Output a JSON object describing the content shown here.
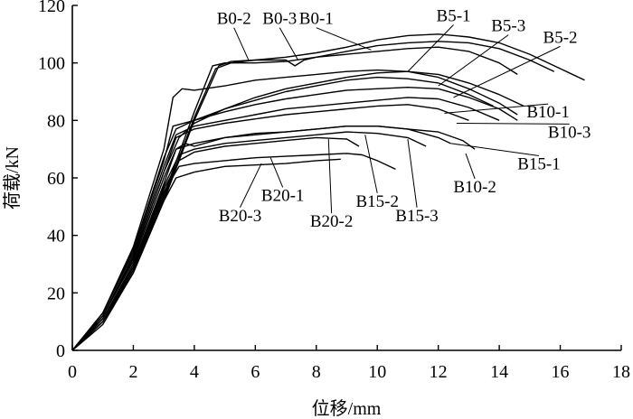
{
  "chart_data": {
    "type": "line",
    "xlabel": "位移/mm",
    "ylabel": "荷载/kN",
    "xlim": [
      0,
      18
    ],
    "ylim": [
      0,
      120
    ],
    "xticks": [
      0,
      2,
      4,
      6,
      8,
      10,
      12,
      14,
      16,
      18
    ],
    "yticks": [
      0,
      20,
      40,
      60,
      80,
      100,
      120
    ],
    "grid": false,
    "series": [
      {
        "name": "B0-1",
        "x": [
          0,
          1,
          2,
          3,
          4,
          4.8,
          5.2,
          6,
          7,
          8,
          9,
          10,
          11,
          12,
          13,
          14,
          15,
          16,
          16.8
        ],
        "y": [
          0,
          10,
          27,
          52,
          80,
          99,
          100.5,
          101,
          102,
          103.5,
          105.5,
          108,
          109.5,
          110,
          109,
          107,
          103,
          98,
          94
        ],
        "label_x": 8.0,
        "label_y": 113.5,
        "anchor_x": 9.8,
        "anchor_y": 104.5
      },
      {
        "name": "B0-2",
        "x": [
          0,
          1,
          2,
          3,
          4,
          4.6,
          5,
          6,
          7,
          8,
          9,
          10,
          11,
          12,
          13,
          14,
          14.6
        ],
        "y": [
          0,
          10,
          28,
          54,
          83,
          99,
          100,
          100,
          100.5,
          102,
          103,
          104,
          105,
          105.5,
          104,
          100,
          96
        ],
        "label_x": 5.3,
        "label_y": 113.5,
        "anchor_x": 5.8,
        "anchor_y": 100.5
      },
      {
        "name": "B0-3",
        "x": [
          0,
          1,
          2,
          3,
          4,
          4.7,
          5.2,
          6,
          7,
          7.3,
          7.6,
          8,
          9,
          10,
          11,
          12,
          13,
          14,
          15,
          15.8
        ],
        "y": [
          0,
          9,
          27,
          53,
          81,
          98,
          100,
          101,
          101,
          99,
          101,
          102,
          104,
          106,
          107,
          107.5,
          107,
          105,
          101,
          97
        ],
        "label_x": 6.8,
        "label_y": 113.5,
        "anchor_x": 7.4,
        "anchor_y": 101
      },
      {
        "name": "B5-1",
        "x": [
          0,
          1,
          2,
          3,
          3.5,
          4,
          5,
          6,
          7,
          8,
          9,
          10,
          11,
          12,
          13,
          14,
          14.8
        ],
        "y": [
          0,
          12,
          32,
          62,
          74,
          79,
          84,
          88,
          91,
          93,
          95,
          96.5,
          97,
          96,
          93,
          89,
          85
        ],
        "label_x": 12.5,
        "label_y": 114.5,
        "anchor_x": 11.0,
        "anchor_y": 97
      },
      {
        "name": "B5-2",
        "x": [
          0,
          1,
          2,
          3,
          3.4,
          4,
          5,
          6,
          7,
          8,
          9,
          10,
          11,
          12,
          13,
          13.8
        ],
        "y": [
          0,
          13,
          35,
          67,
          77,
          80,
          84,
          87,
          90,
          92,
          94,
          95,
          94.5,
          93,
          89,
          85
        ],
        "label_x": 16.0,
        "label_y": 107,
        "anchor_x": 12.5,
        "anchor_y": 88
      },
      {
        "name": "B5-3",
        "x": [
          0,
          1,
          2,
          3,
          3.3,
          3.6,
          4,
          5,
          6,
          7,
          8,
          9,
          10,
          11,
          12,
          13,
          14,
          14.6
        ],
        "y": [
          0,
          13,
          36,
          70,
          88,
          91,
          90.5,
          92,
          94,
          95,
          96,
          97,
          97.5,
          97,
          95,
          91,
          86,
          82
        ],
        "label_x": 14.3,
        "label_y": 111,
        "anchor_x": 12.0,
        "anchor_y": 92
      },
      {
        "name": "B10-1",
        "x": [
          0,
          1,
          2,
          3,
          3.4,
          4,
          5,
          6,
          7,
          8,
          9,
          10,
          11,
          12,
          13
        ],
        "y": [
          0,
          12,
          32,
          62,
          74,
          77,
          79,
          80.5,
          82,
          83,
          84,
          85,
          85.5,
          84,
          80
        ],
        "label_x": 15.6,
        "label_y": 81,
        "anchor_x": 12.2,
        "anchor_y": 82.5
      },
      {
        "name": "B10-2",
        "x": [
          0,
          1,
          2,
          3,
          3.4,
          4,
          5,
          6,
          7,
          8,
          9,
          10,
          11,
          12,
          12.8,
          13.2
        ],
        "y": [
          0,
          12,
          31,
          60,
          70,
          72,
          74,
          75.5,
          76,
          77,
          78,
          78,
          77,
          76,
          73,
          70
        ],
        "label_x": 13.2,
        "label_y": 55,
        "anchor_x": 12.9,
        "anchor_y": 68.5
      },
      {
        "name": "B10-3",
        "x": [
          0,
          1,
          2,
          3,
          3.4,
          4,
          5,
          6,
          7,
          8,
          9,
          10,
          11,
          12,
          13,
          14
        ],
        "y": [
          0,
          12,
          33,
          64,
          75,
          78,
          80,
          82,
          84,
          85,
          86,
          87,
          88,
          87.5,
          84.5,
          80
        ],
        "label_x": 16.3,
        "label_y": 74,
        "anchor_x": 12.6,
        "anchor_y": 79
      },
      {
        "name": "B15-1",
        "x": [
          0,
          1,
          2,
          3,
          3.3,
          4,
          5,
          6,
          7,
          8,
          9,
          10,
          11,
          12,
          13,
          14,
          14.6
        ],
        "y": [
          0,
          13,
          34,
          66,
          78,
          80,
          83,
          85.5,
          87.5,
          89,
          90.5,
          91,
          91.5,
          91,
          88,
          84,
          80
        ],
        "label_x": 15.3,
        "label_y": 63,
        "anchor_x": 12.4,
        "anchor_y": 72
      },
      {
        "name": "B15-2",
        "x": [
          0,
          1,
          2,
          3,
          3.5,
          4,
          5,
          6,
          7,
          8,
          9,
          10,
          11,
          11.6
        ],
        "y": [
          0,
          11,
          29,
          57,
          68,
          70,
          72,
          73,
          74,
          75,
          76,
          75.5,
          74,
          71
        ],
        "label_x": 10.0,
        "label_y": 50,
        "anchor_x": 9.6,
        "anchor_y": 75
      },
      {
        "name": "B15-3",
        "x": [
          0,
          1,
          2,
          3,
          3.4,
          3.7,
          4,
          5,
          6,
          7,
          8,
          9,
          10,
          11,
          12,
          12.4
        ],
        "y": [
          0,
          11,
          30,
          58,
          70,
          72,
          71,
          74,
          75,
          76,
          77,
          78,
          78,
          77,
          74,
          72
        ],
        "label_x": 11.3,
        "label_y": 45,
        "anchor_x": 11.0,
        "anchor_y": 73.5
      },
      {
        "name": "B20-1",
        "x": [
          0,
          1,
          2,
          3,
          3.5,
          4,
          5,
          6,
          7,
          8,
          9,
          9.5,
          10,
          10.6
        ],
        "y": [
          0,
          11,
          28,
          55,
          64,
          65,
          66,
          67,
          67.5,
          68,
          68.5,
          68,
          66,
          63
        ],
        "label_x": 6.9,
        "label_y": 52,
        "anchor_x": 6.5,
        "anchor_y": 67
      },
      {
        "name": "B20-2",
        "x": [
          0,
          1,
          2,
          3,
          3.5,
          4,
          5,
          6,
          7,
          8,
          9,
          9.4
        ],
        "y": [
          0,
          11,
          29,
          56,
          66,
          69,
          71,
          72,
          73,
          74,
          73.5,
          71
        ],
        "label_x": 8.5,
        "label_y": 43,
        "anchor_x": 8.4,
        "anchor_y": 73.5
      },
      {
        "name": "B20-3",
        "x": [
          0,
          1,
          2,
          3,
          3.4,
          4,
          5,
          6,
          7,
          8,
          8.8
        ],
        "y": [
          0,
          10,
          27,
          52,
          60,
          62,
          64,
          64.5,
          65,
          66,
          66.5
        ],
        "label_x": 5.5,
        "label_y": 45,
        "anchor_x": 6.2,
        "anchor_y": 65
      }
    ]
  }
}
